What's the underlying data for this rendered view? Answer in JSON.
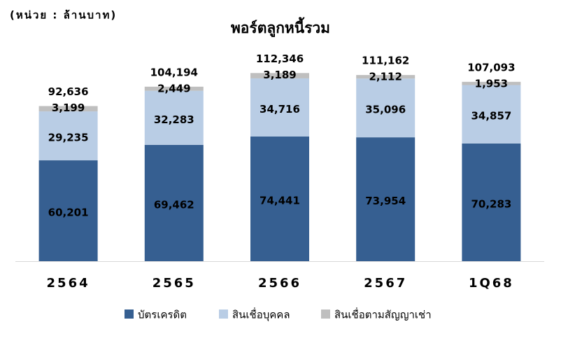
{
  "chart_data": {
    "type": "stacked-bar",
    "title": "พอร์ตลูกหนี้รวม",
    "unit_label": "(หน่วย : ล้านบาท)",
    "categories": [
      "2564",
      "2565",
      "2566",
      "2567",
      "1Q68"
    ],
    "series": [
      {
        "name": "บัตรเครดิต",
        "color": "#365f91",
        "values": [
          60201,
          69462,
          74441,
          73954,
          70283
        ],
        "value_labels": [
          "60,201",
          "69,462",
          "74,441",
          "73,954",
          "70,283"
        ]
      },
      {
        "name": "สินเชื่อบุคคล",
        "color": "#b9cde5",
        "values": [
          29235,
          32283,
          34716,
          35096,
          34857
        ],
        "value_labels": [
          "29,235",
          "32,283",
          "34,716",
          "35,096",
          "34,857"
        ]
      },
      {
        "name": "สินเชื่อตามสัญญาเช่า",
        "color": "#bfbfbf",
        "values": [
          3199,
          2449,
          3189,
          2112,
          1953
        ],
        "value_labels": [
          "3,199",
          "2,449",
          "3,189",
          "2,112",
          "1,953"
        ]
      }
    ],
    "totals": [
      92636,
      104194,
      112346,
      111162,
      107093
    ],
    "total_labels": [
      "92,636",
      "104,194",
      "112,346",
      "111,162",
      "107,093"
    ],
    "ylim": [
      0,
      120000
    ],
    "legend": "bottom"
  }
}
